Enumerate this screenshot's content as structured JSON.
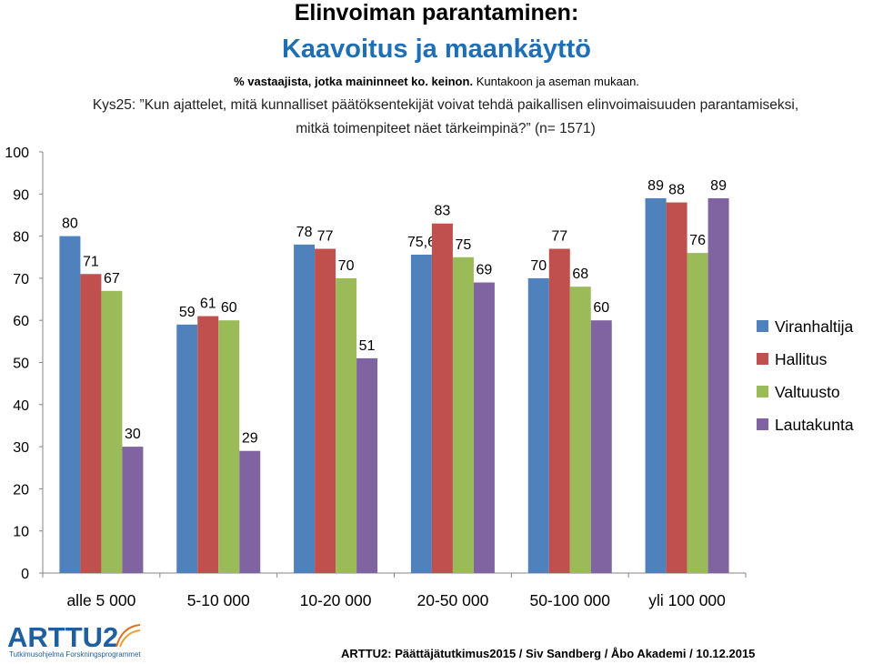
{
  "header": {
    "title": "Elinvoiman parantaminen:",
    "subtitle": "Kaavoitus ja maankäyttö",
    "note_bold": "% vastaajista, jotka maininneet ko. keinon.",
    "note_plain": "Kuntakoon ja aseman mukaan.",
    "question": "Kys25: ”Kun ajattelet, mitä kunnalliset päätöksentekijät voivat tehdä paikallisen elinvoimaisuuden parantamiseksi, mitkä toimenpiteet näet tärkeimpinä?” (n= 1571)"
  },
  "chart_data": {
    "type": "bar",
    "categories": [
      "alle 5 000",
      "5-10 000",
      "10-20 000",
      "20-50 000",
      "50-100 000",
      "yli 100 000"
    ],
    "series": [
      {
        "name": "Viranhaltija",
        "color": "#4f81bd",
        "values": [
          80,
          59,
          78,
          75.6,
          70,
          89
        ],
        "labels": [
          "80",
          "59",
          "78",
          "75,6",
          "70",
          "89"
        ]
      },
      {
        "name": "Hallitus",
        "color": "#c0504d",
        "values": [
          71,
          61,
          77,
          83,
          77,
          88
        ],
        "labels": [
          "71",
          "61",
          "77",
          "83",
          "77",
          "88"
        ]
      },
      {
        "name": "Valtuusto",
        "color": "#9bbb59",
        "values": [
          67,
          60,
          70,
          75,
          68,
          76
        ],
        "labels": [
          "67",
          "60",
          "70",
          "75",
          "68",
          "76"
        ]
      },
      {
        "name": "Lautakunta",
        "color": "#8064a2",
        "values": [
          30,
          29,
          51,
          69,
          60,
          89
        ],
        "labels": [
          "30",
          "29",
          "51",
          "69",
          "60",
          "89"
        ]
      }
    ],
    "ylim": [
      0,
      100
    ],
    "yticks": [
      0,
      10,
      20,
      30,
      40,
      50,
      60,
      70,
      80,
      90,
      100
    ],
    "legend_position": "right"
  },
  "footer": {
    "logo_text": "ARTTU2",
    "logo_sub": "Tutkimusohjelma Forskningsprogrammet",
    "credit": "ARTTU2: Päättäjätutkimus2015 / Siv Sandberg / Åbo Akademi / 10.12.2015"
  }
}
